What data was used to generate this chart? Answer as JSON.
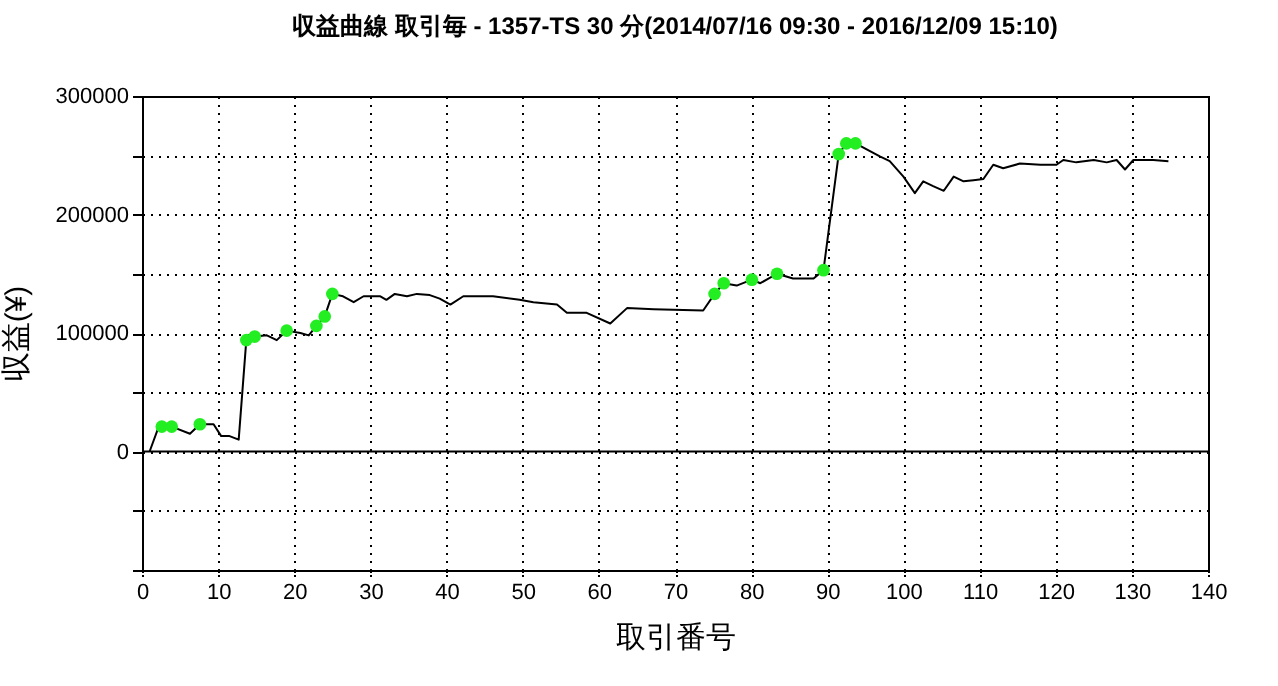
{
  "chart_data": {
    "type": "line",
    "title": "収益曲線 取引毎 - 1357-TS 30 分(2014/07/16 09:30 - 2016/12/09 15:10)",
    "xlabel": "取引番号",
    "ylabel": "収益(¥)",
    "xlim": [
      0,
      140
    ],
    "xticks": [
      0,
      10,
      20,
      30,
      40,
      50,
      60,
      70,
      80,
      90,
      100,
      110,
      120,
      130,
      140
    ],
    "ylim": [
      -100000,
      300000
    ],
    "yticks": [
      {
        "value": -100000,
        "label": null
      },
      {
        "value": -50000,
        "label": null
      },
      0,
      {
        "value": 50000,
        "label": null
      },
      100000,
      {
        "value": 150000,
        "label": null
      },
      200000,
      {
        "value": 250000,
        "label": null
      },
      300000
    ],
    "grid": true,
    "legend": false,
    "ref_lines": [
      {
        "axis": "y",
        "value": 0,
        "color": "#000000"
      }
    ],
    "series": [
      {
        "type": "line",
        "color": "#000000",
        "marker": "none",
        "line_style": "solid",
        "x": [
          1.0,
          2.2,
          3.9,
          6.3,
          7.6,
          9.4,
          10.4,
          11.5,
          12.7,
          13.7,
          14.8,
          16.4,
          17.7,
          19.0,
          20.8,
          21.9,
          22.9,
          24.0,
          25.0,
          26.4,
          27.8,
          29.1,
          31.3,
          32.1,
          33.2,
          34.8,
          36.1,
          37.8,
          39.1,
          40.5,
          42.2,
          46.1,
          49.6,
          51.4,
          54.5,
          55.8,
          58.4,
          61.5,
          63.7,
          67.2,
          73.7,
          75.2,
          76.4,
          78.1,
          80.1,
          81.2,
          83.4,
          85.5,
          88.2,
          89.5,
          91.5,
          92.5,
          93.7,
          96.9,
          98.2,
          100.0,
          101.5,
          102.6,
          103.9,
          105.3,
          106.6,
          107.9,
          109.2,
          110.5,
          111.8,
          113.1,
          115.3,
          118.0,
          120.1,
          121.0,
          122.7,
          125.0,
          126.7,
          128.0,
          129.1,
          130.2,
          132.8,
          134.8
        ],
        "values": [
          0,
          21000,
          21000,
          15000,
          23000,
          23000,
          13000,
          13000,
          10000,
          94000,
          97000,
          98000,
          94000,
          102000,
          100000,
          98000,
          106000,
          114000,
          133000,
          131000,
          126000,
          131000,
          131000,
          128000,
          133000,
          131000,
          133000,
          132000,
          129000,
          124000,
          131000,
          131000,
          128000,
          126000,
          124000,
          117000,
          117000,
          108000,
          121000,
          120000,
          119000,
          133000,
          142000,
          140000,
          145000,
          142000,
          150000,
          146000,
          146000,
          153000,
          251000,
          260000,
          260000,
          249000,
          245000,
          232000,
          218000,
          228000,
          224000,
          220000,
          232000,
          228000,
          229000,
          230000,
          242000,
          239000,
          243000,
          242000,
          242000,
          246000,
          244000,
          246000,
          244000,
          246000,
          238000,
          246000,
          246000,
          245000
        ]
      },
      {
        "type": "scatter",
        "color": "#22ee22",
        "marker": "circle",
        "x": [
          2.6,
          3.9,
          7.6,
          13.7,
          14.8,
          19.0,
          22.9,
          24.0,
          25.0,
          75.2,
          76.4,
          80.1,
          83.4,
          89.5,
          91.5,
          92.5,
          93.7
        ],
        "values": [
          21000,
          21000,
          23000,
          94000,
          97000,
          102000,
          106000,
          114000,
          133000,
          133000,
          142000,
          145000,
          150000,
          153000,
          251000,
          260000,
          260000
        ]
      }
    ]
  }
}
